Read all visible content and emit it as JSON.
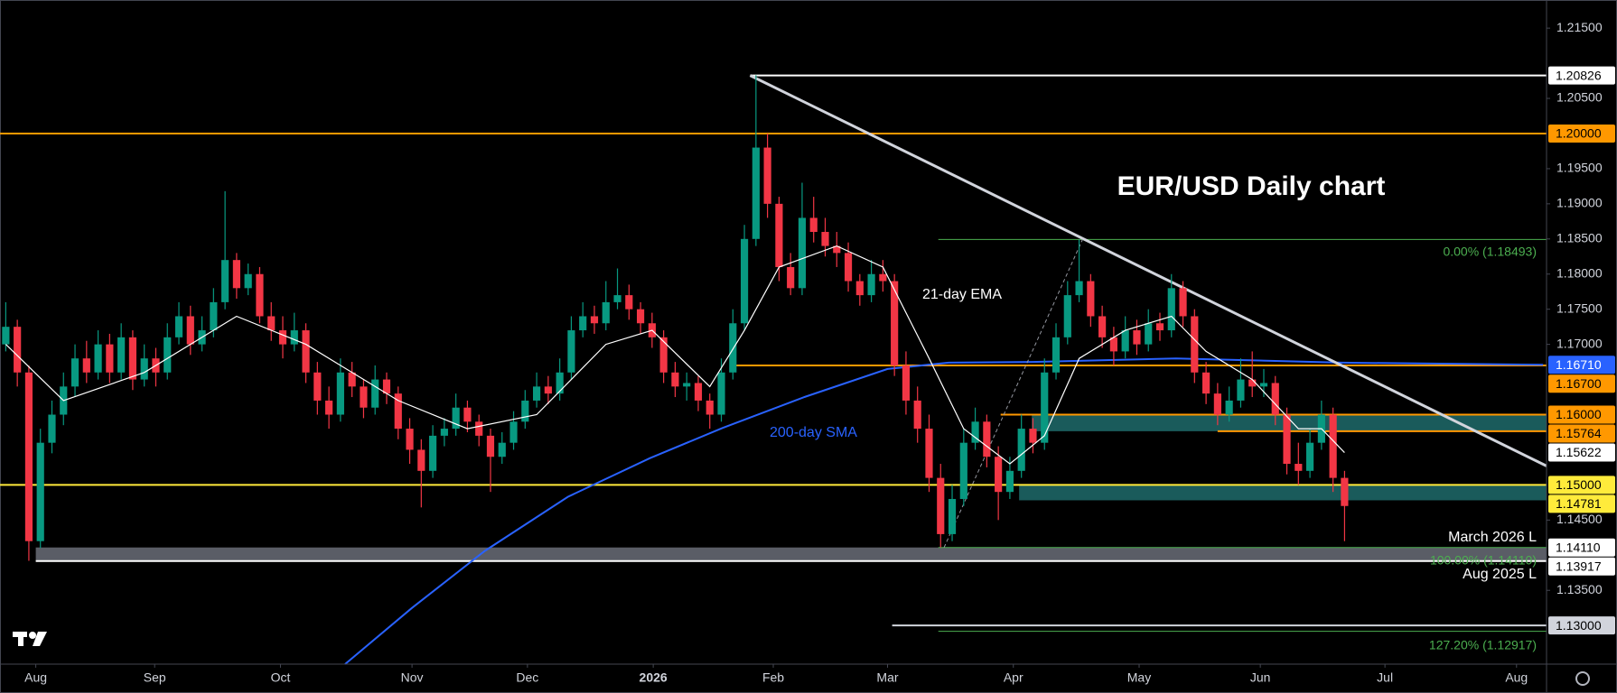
{
  "chart_data": {
    "type": "candlestick",
    "title": "EUR/USD Daily chart",
    "annotations": {
      "ema": "21-day EMA",
      "sma": "200-day SMA",
      "march_low": "March 2026 L",
      "aug_low": "Aug 2025 L",
      "fib_0": "0.00% (1.18493)",
      "fib_100": "100.00% (1.14110)",
      "fib_127": "127.20% (1.12917)"
    },
    "up_color": "#089981",
    "down_color": "#f23645",
    "xlim": [
      -0.5,
      133.5
    ],
    "ylim": [
      1.1245,
      1.219
    ],
    "xticks": [
      {
        "value": 2.6,
        "label": "Aug"
      },
      {
        "value": 12.9,
        "label": "Sep"
      },
      {
        "value": 23.8,
        "label": "Oct"
      },
      {
        "value": 35.2,
        "label": "Nov"
      },
      {
        "value": 45.2,
        "label": "Dec"
      },
      {
        "value": 56.1,
        "label": "2026"
      },
      {
        "value": 66.5,
        "label": "Feb"
      },
      {
        "value": 76.4,
        "label": "Mar"
      },
      {
        "value": 87.3,
        "label": "Apr"
      },
      {
        "value": 98.2,
        "label": "May"
      },
      {
        "value": 108.7,
        "label": "Jun"
      },
      {
        "value": 119.5,
        "label": "Jul"
      },
      {
        "value": 130.9,
        "label": "Aug"
      }
    ],
    "yticks": [
      {
        "value": 1.215,
        "label": "1.21500"
      },
      {
        "value": 1.205,
        "label": "1.20500"
      },
      {
        "value": 1.195,
        "label": "1.19500"
      },
      {
        "value": 1.19,
        "label": "1.19000"
      },
      {
        "value": 1.185,
        "label": "1.18500"
      },
      {
        "value": 1.18,
        "label": "1.18000"
      },
      {
        "value": 1.175,
        "label": "1.17500"
      },
      {
        "value": 1.17,
        "label": "1.17000"
      },
      {
        "value": 1.145,
        "label": "1.14500"
      },
      {
        "value": 1.135,
        "label": "1.13500"
      }
    ],
    "grid": false,
    "ohlc": [
      [
        1.17,
        1.176,
        1.169,
        1.1725
      ],
      [
        1.1725,
        1.1735,
        1.164,
        1.166
      ],
      [
        1.166,
        1.167,
        1.1392,
        1.142
      ],
      [
        1.142,
        1.158,
        1.141,
        1.156
      ],
      [
        1.156,
        1.162,
        1.1545,
        1.16
      ],
      [
        1.16,
        1.166,
        1.1585,
        1.164
      ],
      [
        1.164,
        1.17,
        1.1625,
        1.168
      ],
      [
        1.168,
        1.1705,
        1.1645,
        1.166
      ],
      [
        1.166,
        1.172,
        1.165,
        1.17
      ],
      [
        1.17,
        1.1715,
        1.1645,
        1.166
      ],
      [
        1.166,
        1.173,
        1.165,
        1.171
      ],
      [
        1.171,
        1.172,
        1.1635,
        1.165
      ],
      [
        1.165,
        1.17,
        1.164,
        1.168
      ],
      [
        1.168,
        1.1695,
        1.164,
        1.166
      ],
      [
        1.166,
        1.173,
        1.165,
        1.171
      ],
      [
        1.171,
        1.176,
        1.17,
        1.174
      ],
      [
        1.174,
        1.1755,
        1.1685,
        1.17
      ],
      [
        1.17,
        1.174,
        1.169,
        1.172
      ],
      [
        1.172,
        1.178,
        1.171,
        1.176
      ],
      [
        1.176,
        1.1918,
        1.175,
        1.182
      ],
      [
        1.182,
        1.183,
        1.1765,
        1.178
      ],
      [
        1.178,
        1.1815,
        1.177,
        1.18
      ],
      [
        1.18,
        1.181,
        1.173,
        1.174
      ],
      [
        1.174,
        1.176,
        1.1705,
        1.172
      ],
      [
        1.172,
        1.174,
        1.168,
        1.17
      ],
      [
        1.17,
        1.1745,
        1.169,
        1.172
      ],
      [
        1.172,
        1.173,
        1.1645,
        1.166
      ],
      [
        1.166,
        1.1675,
        1.16,
        1.162
      ],
      [
        1.162,
        1.164,
        1.158,
        1.16
      ],
      [
        1.16,
        1.168,
        1.159,
        1.166
      ],
      [
        1.166,
        1.1675,
        1.1625,
        1.164
      ],
      [
        1.164,
        1.165,
        1.1595,
        1.161
      ],
      [
        1.161,
        1.167,
        1.16,
        1.165
      ],
      [
        1.165,
        1.166,
        1.1615,
        1.163
      ],
      [
        1.163,
        1.164,
        1.1565,
        1.158
      ],
      [
        1.158,
        1.1595,
        1.153,
        1.155
      ],
      [
        1.155,
        1.1565,
        1.1468,
        1.152
      ],
      [
        1.152,
        1.1585,
        1.151,
        1.157
      ],
      [
        1.157,
        1.1595,
        1.1555,
        1.158
      ],
      [
        1.158,
        1.163,
        1.157,
        1.161
      ],
      [
        1.161,
        1.162,
        1.1575,
        1.159
      ],
      [
        1.159,
        1.16,
        1.1555,
        1.157
      ],
      [
        1.157,
        1.158,
        1.149,
        1.154
      ],
      [
        1.154,
        1.1575,
        1.153,
        1.156
      ],
      [
        1.156,
        1.1605,
        1.155,
        1.159
      ],
      [
        1.159,
        1.1635,
        1.158,
        1.162
      ],
      [
        1.162,
        1.166,
        1.161,
        1.164
      ],
      [
        1.164,
        1.1655,
        1.1615,
        1.163
      ],
      [
        1.163,
        1.168,
        1.162,
        1.166
      ],
      [
        1.166,
        1.174,
        1.165,
        1.172
      ],
      [
        1.172,
        1.176,
        1.171,
        1.174
      ],
      [
        1.174,
        1.1755,
        1.1715,
        1.173
      ],
      [
        1.173,
        1.179,
        1.172,
        1.176
      ],
      [
        1.176,
        1.1808,
        1.175,
        1.177
      ],
      [
        1.177,
        1.1785,
        1.1735,
        1.175
      ],
      [
        1.175,
        1.176,
        1.1715,
        1.173
      ],
      [
        1.173,
        1.1745,
        1.1695,
        1.171
      ],
      [
        1.171,
        1.172,
        1.1645,
        1.166
      ],
      [
        1.166,
        1.1675,
        1.1625,
        1.164
      ],
      [
        1.164,
        1.166,
        1.162,
        1.1645
      ],
      [
        1.1645,
        1.1655,
        1.1605,
        1.162
      ],
      [
        1.162,
        1.163,
        1.158,
        1.16
      ],
      [
        1.16,
        1.168,
        1.159,
        1.166
      ],
      [
        1.166,
        1.175,
        1.165,
        1.173
      ],
      [
        1.173,
        1.187,
        1.172,
        1.185
      ],
      [
        1.185,
        1.2083,
        1.184,
        1.198
      ],
      [
        1.198,
        1.2,
        1.188,
        1.19
      ],
      [
        1.19,
        1.191,
        1.179,
        1.181
      ],
      [
        1.181,
        1.183,
        1.177,
        1.178
      ],
      [
        1.178,
        1.193,
        1.177,
        1.188
      ],
      [
        1.188,
        1.191,
        1.1845,
        1.186
      ],
      [
        1.186,
        1.188,
        1.1825,
        1.184
      ],
      [
        1.184,
        1.186,
        1.181,
        1.183
      ],
      [
        1.183,
        1.1845,
        1.1775,
        1.179
      ],
      [
        1.179,
        1.18,
        1.1755,
        1.177
      ],
      [
        1.177,
        1.182,
        1.176,
        1.18
      ],
      [
        1.18,
        1.182,
        1.1775,
        1.179
      ],
      [
        1.179,
        1.18,
        1.1655,
        1.167
      ],
      [
        1.167,
        1.169,
        1.16,
        1.162
      ],
      [
        1.162,
        1.164,
        1.156,
        1.158
      ],
      [
        1.158,
        1.16,
        1.149,
        1.151
      ],
      [
        1.151,
        1.153,
        1.1411,
        1.143
      ],
      [
        1.143,
        1.15,
        1.142,
        1.148
      ],
      [
        1.148,
        1.158,
        1.147,
        1.156
      ],
      [
        1.156,
        1.161,
        1.155,
        1.159
      ],
      [
        1.159,
        1.16,
        1.1525,
        1.154
      ],
      [
        1.154,
        1.1555,
        1.145,
        1.149
      ],
      [
        1.149,
        1.154,
        1.148,
        1.152
      ],
      [
        1.152,
        1.16,
        1.151,
        1.158
      ],
      [
        1.158,
        1.1595,
        1.1545,
        1.156
      ],
      [
        1.156,
        1.168,
        1.155,
        1.166
      ],
      [
        1.166,
        1.173,
        1.165,
        1.171
      ],
      [
        1.171,
        1.179,
        1.17,
        1.177
      ],
      [
        1.177,
        1.1849,
        1.176,
        1.179
      ],
      [
        1.179,
        1.18,
        1.1725,
        1.174
      ],
      [
        1.174,
        1.1755,
        1.1695,
        1.171
      ],
      [
        1.171,
        1.1725,
        1.167,
        1.169
      ],
      [
        1.169,
        1.174,
        1.168,
        1.172
      ],
      [
        1.172,
        1.1735,
        1.1685,
        1.17
      ],
      [
        1.17,
        1.175,
        1.169,
        1.173
      ],
      [
        1.173,
        1.1745,
        1.1705,
        1.172
      ],
      [
        1.172,
        1.18,
        1.171,
        1.178
      ],
      [
        1.178,
        1.179,
        1.1725,
        1.174
      ],
      [
        1.174,
        1.175,
        1.1645,
        1.166
      ],
      [
        1.166,
        1.1675,
        1.1615,
        1.163
      ],
      [
        1.163,
        1.1645,
        1.1585,
        1.16
      ],
      [
        1.16,
        1.164,
        1.159,
        1.162
      ],
      [
        1.162,
        1.168,
        1.161,
        1.165
      ],
      [
        1.165,
        1.169,
        1.1625,
        1.164
      ],
      [
        1.164,
        1.1665,
        1.1625,
        1.1645
      ],
      [
        1.1645,
        1.1655,
        1.1585,
        1.16
      ],
      [
        1.16,
        1.161,
        1.1515,
        1.153
      ],
      [
        1.153,
        1.156,
        1.15,
        1.152
      ],
      [
        1.152,
        1.158,
        1.151,
        1.156
      ],
      [
        1.156,
        1.162,
        1.155,
        1.16
      ],
      [
        1.16,
        1.161,
        1.149,
        1.151
      ],
      [
        1.151,
        1.152,
        1.142,
        1.147
      ]
    ],
    "ema": {
      "color": "#ffffff",
      "x": [
        0,
        5,
        12,
        20,
        26,
        34,
        40,
        46,
        52,
        56,
        61,
        64,
        67,
        72,
        76,
        80,
        83,
        87,
        90,
        93,
        97,
        101,
        104,
        108,
        112,
        114,
        116
      ],
      "values": [
        1.17,
        1.162,
        1.166,
        1.174,
        1.17,
        1.162,
        1.158,
        1.16,
        1.17,
        1.172,
        1.164,
        1.172,
        1.181,
        1.184,
        1.181,
        1.168,
        1.158,
        1.153,
        1.157,
        1.168,
        1.172,
        1.174,
        1.169,
        1.165,
        1.158,
        1.158,
        1.1546
      ]
    },
    "sma": {
      "color": "#2962ff",
      "x": [
        29.4,
        35.2,
        41.5,
        48.7,
        55.8,
        62.1,
        69.2,
        76.4,
        81.7,
        88.9,
        101.4,
        115.7,
        133.2
      ],
      "values": [
        1.1245,
        1.1325,
        1.1406,
        1.1483,
        1.1538,
        1.1581,
        1.1625,
        1.1665,
        1.1674,
        1.1675,
        1.168,
        1.1674,
        1.1671
      ]
    },
    "trendline": {
      "color": "#d1d4dc",
      "x": [
        64.5,
        133.5
      ],
      "values": [
        1.20826,
        1.1527
      ]
    },
    "fib_trend": {
      "color": "#9598a1",
      "x": [
        81.3,
        93.3
      ],
      "values": [
        1.1411,
        1.18493
      ]
    },
    "fib_color": "#4caf50",
    "fib_levels": [
      {
        "value": 1.18493,
        "from": 80.8
      },
      {
        "value": 1.1411,
        "from": 80.8
      },
      {
        "value": 1.12917,
        "from": 80.8
      }
    ],
    "zones": [
      {
        "low": 1.15764,
        "high": 1.16,
        "from": 88.9,
        "color": "#1e6b6b"
      },
      {
        "low": 1.14781,
        "high": 1.15,
        "from": 87.8,
        "color": "#1e6b6b"
      },
      {
        "low": 1.13917,
        "high": 1.1411,
        "from": 2.6,
        "color": "#6a6d78"
      }
    ],
    "levels": [
      {
        "value": 1.20826,
        "label": "1.20826",
        "line_color": "#ffffff",
        "from": 64.5,
        "label_bg": "#ffffff",
        "label_fg": "#000000"
      },
      {
        "value": 1.2,
        "label": "1.20000",
        "line_color": "#ff9800",
        "from": -0.5,
        "label_bg": "#ff9800",
        "label_fg": "#000000"
      },
      {
        "value": 1.1671,
        "label": "1.16710",
        "label_bg": "#2962ff",
        "label_fg": "#ffffff"
      },
      {
        "value": 1.167,
        "label": "1.16700",
        "line_color": "#ff9800",
        "from": 63.0,
        "label_bg": "#ff9800",
        "label_fg": "#000000"
      },
      {
        "value": 1.16,
        "label": "1.16000",
        "line_color": "#ff9800",
        "from": 86.2,
        "label_bg": "#ff9800",
        "label_fg": "#000000"
      },
      {
        "value": 1.15764,
        "label": "1.15764",
        "line_color": "#ff9800",
        "from": 105.0,
        "label_bg": "#ff9800",
        "label_fg": "#000000"
      },
      {
        "value": 1.15622,
        "label": "1.15622",
        "label_bg": "#ffffff",
        "label_fg": "#000000"
      },
      {
        "value": 1.15,
        "label": "1.15000",
        "line_color": "#ffeb3b",
        "from": -0.5,
        "label_bg": "#ffeb3b",
        "label_fg": "#000000"
      },
      {
        "value": 1.14781,
        "label": "1.14781",
        "label_bg": "#ffeb3b",
        "label_fg": "#000000"
      },
      {
        "value": 1.1411,
        "label": "1.14110",
        "label_bg": "#ffffff",
        "label_fg": "#000000"
      },
      {
        "value": 1.13917,
        "label": "1.13917",
        "line_color": "#ffffff",
        "from": 2.6,
        "label_bg": "#ffffff",
        "label_fg": "#000000"
      },
      {
        "value": 1.13,
        "label": "1.13000",
        "line_color": "#d1d4dc",
        "from": 76.8,
        "label_bg": "#d1d4dc",
        "label_fg": "#000000"
      }
    ]
  }
}
